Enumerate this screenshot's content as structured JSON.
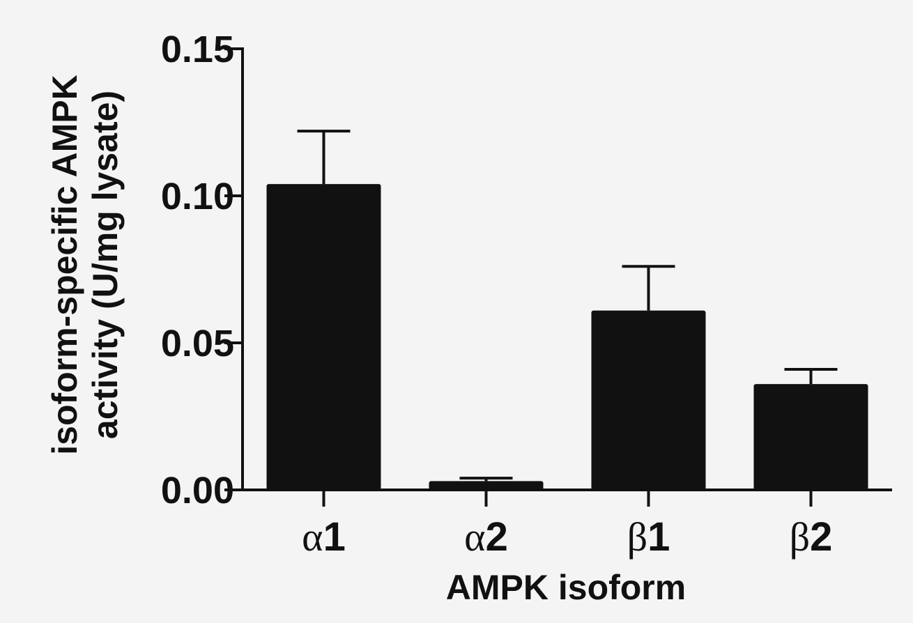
{
  "chart_data": {
    "type": "bar",
    "categories": [
      {
        "greek": "α",
        "num": "1"
      },
      {
        "greek": "α",
        "num": "2"
      },
      {
        "greek": "β",
        "num": "1"
      },
      {
        "greek": "β",
        "num": "2"
      }
    ],
    "values": [
      0.104,
      0.003,
      0.061,
      0.036
    ],
    "error_upper": [
      0.122,
      0.004,
      0.076,
      0.041
    ],
    "yticks": [
      "0.00",
      "0.05",
      "0.10",
      "0.15"
    ],
    "ylim": [
      0,
      0.15
    ],
    "xlabel": "AMPK isoform",
    "ylabel_lines": [
      "isoform-specific AMPK",
      "activity (U/mg lysate)"
    ],
    "bar_color": "#111111",
    "grid": false
  }
}
